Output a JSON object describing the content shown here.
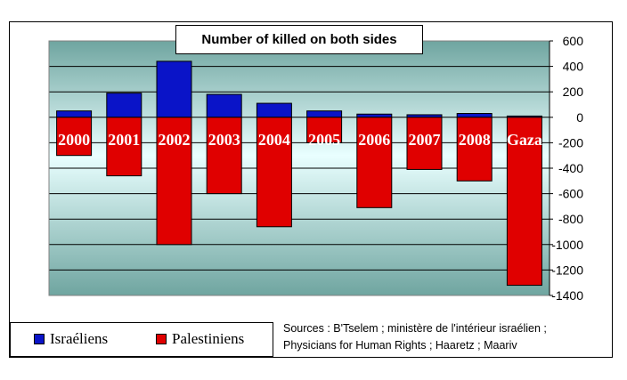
{
  "chart_data": {
    "type": "bar",
    "title": "Number of killed on both sides",
    "categories": [
      "2000",
      "2001",
      "2002",
      "2003",
      "2004",
      "2005",
      "2006",
      "2007",
      "2008",
      "Gaza"
    ],
    "series": [
      {
        "name": "Israéliens",
        "color": "#0a14c8",
        "values": [
          50,
          190,
          440,
          180,
          110,
          50,
          25,
          20,
          30,
          10
        ]
      },
      {
        "name": "Palestiniens",
        "color": "#e00000",
        "values": [
          -300,
          -460,
          -1000,
          -600,
          -860,
          -200,
          -710,
          -410,
          -500,
          -1320
        ]
      }
    ],
    "ylim": [
      -1400,
      600
    ],
    "yticks": [
      600,
      400,
      200,
      0,
      -200,
      -400,
      -600,
      -800,
      -1000,
      -1200,
      -1400
    ],
    "xlabel": "",
    "ylabel": "",
    "grid": true,
    "legend": "bottom-left"
  },
  "sources": {
    "line1": "Sources : B'Tselem ; ministère de l'intérieur israélien ;",
    "line2": "Physicians for Human Rights ; Haaretz ; Maariv"
  }
}
